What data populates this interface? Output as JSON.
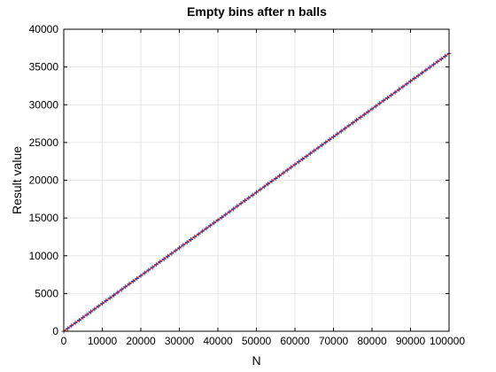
{
  "chart_data": {
    "type": "line",
    "title": "Empty bins after n balls",
    "xlabel": "N",
    "ylabel": "Result value",
    "xlim": [
      0,
      100000
    ],
    "ylim": [
      0,
      40000
    ],
    "x_ticks": [
      0,
      10000,
      20000,
      30000,
      40000,
      50000,
      60000,
      70000,
      80000,
      90000,
      100000
    ],
    "y_ticks": [
      0,
      5000,
      10000,
      15000,
      20000,
      25000,
      30000,
      35000,
      40000
    ],
    "grid": true,
    "legend": "none",
    "series": [
      {
        "color": "#e41a1c",
        "style": "line",
        "x": [
          0,
          10000,
          20000,
          30000,
          40000,
          50000,
          60000,
          70000,
          80000,
          90000,
          100000
        ],
        "values": [
          0,
          3680,
          7360,
          11040,
          14720,
          18400,
          22080,
          25760,
          29440,
          33120,
          36800
        ]
      },
      {
        "color": "#3a3a9a",
        "style": "marker",
        "marker": "plus",
        "x": [
          0,
          1000,
          2000,
          3000,
          4000,
          5000,
          6000,
          7000,
          8000,
          9000,
          10000,
          11000,
          12000,
          13000,
          14000,
          15000,
          16000,
          17000,
          18000,
          19000,
          20000,
          21000,
          22000,
          23000,
          24000,
          25000,
          26000,
          27000,
          28000,
          29000,
          30000,
          31000,
          32000,
          33000,
          34000,
          35000,
          36000,
          37000,
          38000,
          39000,
          40000,
          41000,
          42000,
          43000,
          44000,
          45000,
          46000,
          47000,
          48000,
          49000,
          50000,
          51000,
          52000,
          53000,
          54000,
          55000,
          56000,
          57000,
          58000,
          59000,
          60000,
          61000,
          62000,
          63000,
          64000,
          65000,
          66000,
          67000,
          68000,
          69000,
          70000,
          71000,
          72000,
          73000,
          74000,
          75000,
          76000,
          77000,
          78000,
          79000,
          80000,
          81000,
          82000,
          83000,
          84000,
          85000,
          86000,
          87000,
          88000,
          89000,
          90000,
          91000,
          92000,
          93000,
          94000,
          95000,
          96000,
          97000,
          98000,
          99000,
          100000
        ],
        "values": [
          0,
          368,
          736,
          1104,
          1472,
          1840,
          2208,
          2576,
          2944,
          3312,
          3680,
          4048,
          4416,
          4784,
          5152,
          5520,
          5888,
          6256,
          6624,
          6992,
          7360,
          7728,
          8096,
          8464,
          8832,
          9200,
          9568,
          9936,
          10304,
          10672,
          11040,
          11408,
          11776,
          12144,
          12512,
          12880,
          13248,
          13616,
          13984,
          14352,
          14720,
          15088,
          15456,
          15824,
          16192,
          16560,
          16928,
          17296,
          17664,
          18032,
          18400,
          18768,
          19136,
          19504,
          19872,
          20240,
          20608,
          20976,
          21344,
          21712,
          22080,
          22448,
          22816,
          23184,
          23552,
          23920,
          24288,
          24656,
          25024,
          25392,
          25760,
          26128,
          26496,
          26864,
          27232,
          27600,
          27968,
          28336,
          28704,
          29072,
          29440,
          29808,
          30176,
          30544,
          30912,
          31280,
          31648,
          32016,
          32384,
          32752,
          33120,
          33488,
          33856,
          34224,
          34592,
          34960,
          35328,
          35696,
          36064,
          36432,
          36800
        ]
      }
    ]
  }
}
